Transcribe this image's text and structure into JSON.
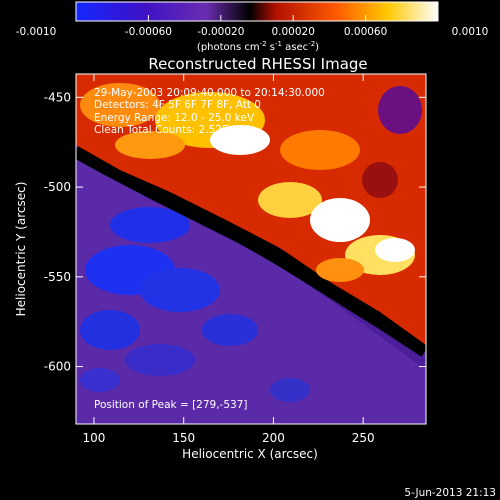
{
  "chart_data": {
    "type": "heatmap",
    "title": "Reconstructed RHESSI Image",
    "xlabel": "Heliocentric X (arcsec)",
    "ylabel": "Heliocentric Y (arcsec)",
    "xlim": [
      90,
      285
    ],
    "ylim": [
      -632,
      -437
    ],
    "x_ticks": [
      "100",
      "150",
      "200",
      "250"
    ],
    "x_tick_values": [
      100,
      150,
      200,
      250
    ],
    "y_ticks": [
      "-450",
      "-500",
      "-550",
      "-600"
    ],
    "y_tick_values": [
      -450,
      -500,
      -550,
      -600
    ],
    "colorbar": {
      "range": [
        -0.001,
        0.001
      ],
      "tick_labels": [
        "-0.0010",
        "-0.00060",
        "-0.00020",
        "0.00020",
        "0.00060",
        "0.0010"
      ],
      "tick_values": [
        -0.001,
        -0.0006,
        -0.0002,
        0.0002,
        0.0006,
        0.001
      ],
      "unit_label": "(photons cm",
      "unit_exp1": "-2",
      "unit_mid": " s",
      "unit_exp2": "-1",
      "unit_mid2": " asec",
      "unit_exp3": "-2",
      "unit_end": ")",
      "colors": [
        "#1428ff",
        "#3c12c8",
        "#6a2cb0",
        "#000000",
        "#b01000",
        "#ff5a00",
        "#ffc800",
        "#ffffff"
      ]
    },
    "annotations": [
      "29-May-2003 20:09:40.000 to 20:14:30.000",
      "Detectors: 4F 5F 6F 7F 8F, Att 0",
      "Energy Range: 12.0 - 25.0 keV",
      "Clean  Total Counts: 2.52E+04"
    ],
    "peak_label": "Position of Peak = [279,-537]",
    "peak": [
      279,
      -537
    ]
  },
  "footer": {
    "date": "5-Jun-2013 21:13"
  }
}
